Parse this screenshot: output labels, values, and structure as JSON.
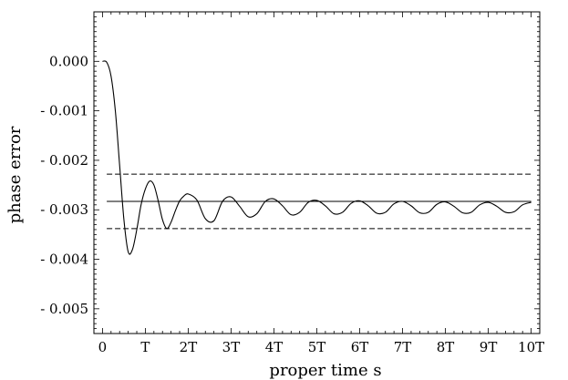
{
  "chart_data": {
    "type": "line",
    "title": "",
    "xlabel": "proper time s",
    "ylabel": "phase error",
    "xlim": [
      -0.2,
      10.2
    ],
    "ylim": [
      -0.0055,
      0.001
    ],
    "x_unit": "T",
    "x_ticks": [
      0,
      1,
      2,
      3,
      4,
      5,
      6,
      7,
      8,
      9,
      10
    ],
    "x_tick_labels": [
      "0",
      "T",
      "2T",
      "3T",
      "4T",
      "5T",
      "6T",
      "7T",
      "8T",
      "9T",
      "10T"
    ],
    "y_ticks": [
      0.0,
      -0.001,
      -0.002,
      -0.003,
      -0.004,
      -0.005
    ],
    "y_tick_labels": [
      "0.000",
      "- 0.001",
      "- 0.002",
      "- 0.003",
      "- 0.004",
      "- 0.005"
    ],
    "grid": false,
    "legend": "none",
    "series": [
      {
        "style": "solid",
        "x": [
          0,
          0.1,
          0.2,
          0.3,
          0.4,
          0.5,
          0.6,
          0.7,
          0.8,
          0.9,
          1.0,
          1.1,
          1.2,
          1.3,
          1.4,
          1.5,
          1.6,
          1.7,
          1.8,
          1.9,
          2.0,
          2.2,
          2.4,
          2.6,
          2.8,
          3.0,
          3.2,
          3.4,
          3.6,
          3.8,
          4.0,
          4.2,
          4.4,
          4.6,
          4.8,
          5.0,
          5.2,
          5.4,
          5.6,
          5.8,
          6.0,
          6.2,
          6.4,
          6.6,
          6.8,
          7.0,
          7.2,
          7.4,
          7.6,
          7.8,
          8.0,
          8.2,
          8.4,
          8.6,
          8.8,
          9.0,
          9.2,
          9.4,
          9.6,
          9.8,
          10.0
        ],
        "y": [
          0.0,
          -2e-05,
          -0.0003,
          -0.001,
          -0.0021,
          -0.0032,
          -0.00385,
          -0.0038,
          -0.0034,
          -0.0029,
          -0.00258,
          -0.00242,
          -0.0025,
          -0.00282,
          -0.0032,
          -0.00338,
          -0.00325,
          -0.00302,
          -0.00282,
          -0.00272,
          -0.00268,
          -0.0028,
          -0.00318,
          -0.00322,
          -0.00283,
          -0.00274,
          -0.00293,
          -0.00314,
          -0.00308,
          -0.00283,
          -0.00278,
          -0.00292,
          -0.0031,
          -0.00305,
          -0.00285,
          -0.00281,
          -0.00292,
          -0.00308,
          -0.00305,
          -0.00287,
          -0.00282,
          -0.00292,
          -0.00307,
          -0.00305,
          -0.00288,
          -0.00283,
          -0.00292,
          -0.00306,
          -0.00305,
          -0.00289,
          -0.00284,
          -0.00293,
          -0.00306,
          -0.00305,
          -0.0029,
          -0.00285,
          -0.00293,
          -0.00305,
          -0.00304,
          -0.0029,
          -0.00285
        ]
      },
      {
        "style": "solid",
        "x": [
          0.1,
          10.0
        ],
        "y": [
          -0.00283,
          -0.00283
        ]
      },
      {
        "style": "dashed",
        "x": [
          0.1,
          10.0
        ],
        "y": [
          -0.00228,
          -0.00228
        ]
      },
      {
        "style": "dashed",
        "x": [
          0.1,
          10.0
        ],
        "y": [
          -0.00338,
          -0.00338
        ]
      }
    ]
  }
}
